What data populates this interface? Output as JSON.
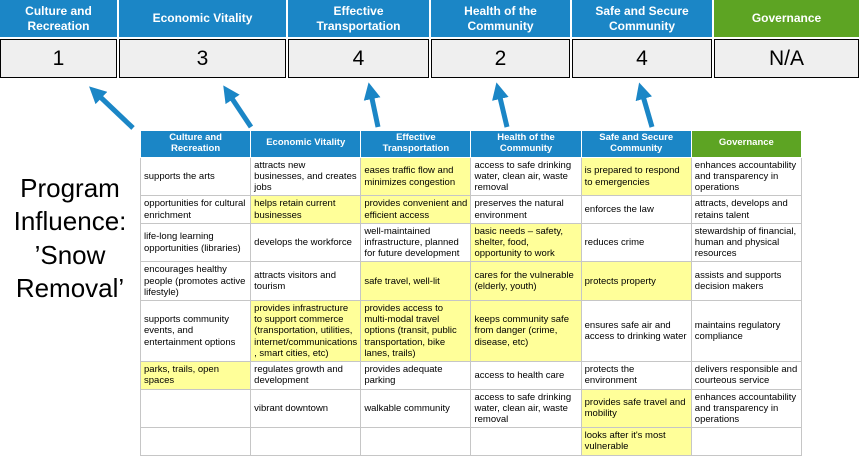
{
  "colors": {
    "category_blue": "#1B86C6",
    "governance_green": "#5DA423",
    "highlight_yellow": "#FFFF99",
    "score_bg": "#EFEFEF",
    "arrow_blue": "#1B86C6"
  },
  "title": "Program Influence: ’Snow Removal’",
  "scoreboard": {
    "columns": [
      {
        "label": "Culture and Recreation",
        "score": "1",
        "accent": "blue"
      },
      {
        "label": "Economic Vitality",
        "score": "3",
        "accent": "blue"
      },
      {
        "label": "Effective Transportation",
        "score": "4",
        "accent": "blue"
      },
      {
        "label": "Health of the Community",
        "score": "2",
        "accent": "blue"
      },
      {
        "label": "Safe and Secure Community",
        "score": "4",
        "accent": "blue"
      },
      {
        "label": "Governance",
        "score": "N/A",
        "accent": "green"
      }
    ]
  },
  "matrix": {
    "headers": [
      {
        "label": "Culture and Recreation",
        "accent": "blue"
      },
      {
        "label": "Economic Vitality",
        "accent": "blue"
      },
      {
        "label": "Effective Transportation",
        "accent": "blue"
      },
      {
        "label": "Health of the Community",
        "accent": "blue"
      },
      {
        "label": "Safe and Secure Community",
        "accent": "blue"
      },
      {
        "label": "Governance",
        "accent": "green"
      }
    ],
    "rows": [
      [
        {
          "t": "supports the arts"
        },
        {
          "t": "attracts new businesses, and creates jobs"
        },
        {
          "t": "eases traffic flow and minimizes congestion",
          "h": 1
        },
        {
          "t": "access to safe drinking water, clean air, waste removal"
        },
        {
          "t": "is prepared to respond to emergencies",
          "h": 1
        },
        {
          "t": "enhances accountability and transparency in operations"
        }
      ],
      [
        {
          "t": "opportunities for cultural enrichment"
        },
        {
          "t": "helps retain current businesses",
          "h": 1
        },
        {
          "t": "provides convenient and efficient access",
          "h": 1
        },
        {
          "t": "preserves the natural environment"
        },
        {
          "t": "enforces the law"
        },
        {
          "t": "attracts, develops and retains talent"
        }
      ],
      [
        {
          "t": "life-long learning opportunities (libraries)"
        },
        {
          "t": "develops the workforce"
        },
        {
          "t": "well-maintained infrastructure, planned for future development"
        },
        {
          "t": "basic needs – safety, shelter, food, opportunity to work",
          "h": 1
        },
        {
          "t": "reduces crime"
        },
        {
          "t": "stewardship of financial, human and physical resources"
        }
      ],
      [
        {
          "t": "encourages healthy people (promotes active lifestyle)"
        },
        {
          "t": "attracts visitors and tourism"
        },
        {
          "t": "safe travel, well-lit",
          "h": 1
        },
        {
          "t": "cares for the vulnerable (elderly, youth)",
          "h": 1
        },
        {
          "t": "protects property",
          "h": 1
        },
        {
          "t": "assists and supports decision makers"
        }
      ],
      [
        {
          "t": "supports community events, and entertainment options"
        },
        {
          "t": "provides infrastructure to support commerce (transportation, utilities, internet/communications, smart cities, etc)",
          "h": 1
        },
        {
          "t": "provides access to multi-modal travel options (transit, public transportation, bike lanes, trails)",
          "h": 1
        },
        {
          "t": "keeps community safe from danger (crime, disease, etc)",
          "h": 1
        },
        {
          "t": "ensures safe air and access to drinking water"
        },
        {
          "t": "maintains regulatory compliance"
        }
      ],
      [
        {
          "t": "parks, trails, open spaces",
          "h": 1
        },
        {
          "t": "regulates growth and development"
        },
        {
          "t": "provides adequate parking"
        },
        {
          "t": "access to health care"
        },
        {
          "t": "protects the environment"
        },
        {
          "t": "delivers responsible and courteous service"
        }
      ],
      [
        {
          "t": ""
        },
        {
          "t": "vibrant downtown"
        },
        {
          "t": "walkable community"
        },
        {
          "t": "access to safe drinking water, clean air, waste removal"
        },
        {
          "t": "provides safe travel and mobility",
          "h": 1
        },
        {
          "t": "enhances accountability and transparency in operations"
        }
      ],
      [
        {
          "t": ""
        },
        {
          "t": ""
        },
        {
          "t": ""
        },
        {
          "t": ""
        },
        {
          "t": "looks after it's most vulnerable",
          "h": 1
        },
        {
          "t": ""
        }
      ]
    ]
  }
}
